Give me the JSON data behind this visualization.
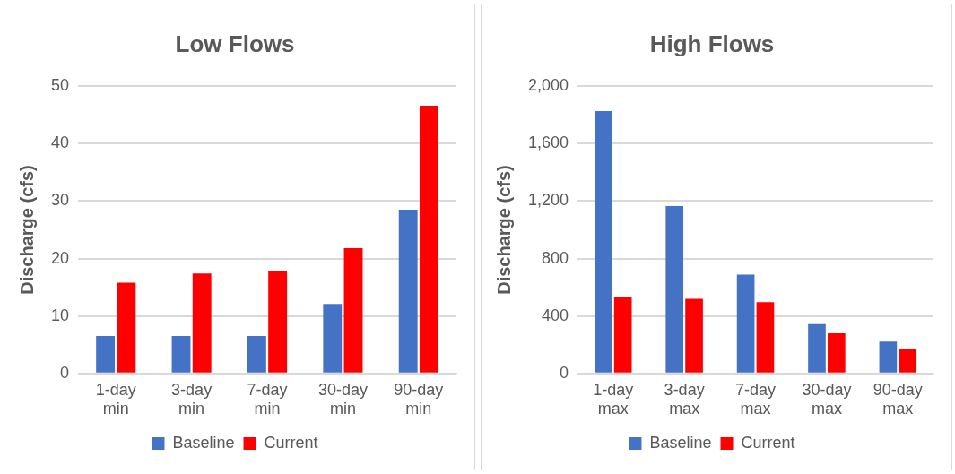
{
  "chart_data": [
    {
      "type": "bar",
      "title": "Low Flows",
      "ylabel": "Discharge (cfs)",
      "categories": [
        "1-day min",
        "3-day min",
        "7-day min",
        "30-day min",
        "90-day min"
      ],
      "series": [
        {
          "name": "Baseline",
          "color": "#4472c4",
          "values": [
            6.5,
            6.5,
            6.5,
            12.1,
            28.5
          ]
        },
        {
          "name": "Current",
          "color": "#ff0000",
          "values": [
            15.8,
            17.4,
            17.9,
            21.8,
            46.6
          ]
        }
      ],
      "ylim": [
        0,
        50
      ],
      "yticks": [
        0,
        10,
        20,
        30,
        40,
        50
      ],
      "grid": "y",
      "legend": "bottom"
    },
    {
      "type": "bar",
      "title": "High Flows",
      "ylabel": "Discharge (cfs)",
      "categories": [
        "1-day max",
        "3-day max",
        "7-day max",
        "30-day max",
        "90-day max"
      ],
      "series": [
        {
          "name": "Baseline",
          "color": "#4472c4",
          "values": [
            1827,
            1165,
            688,
            344,
            221
          ]
        },
        {
          "name": "Current",
          "color": "#ff0000",
          "values": [
            534,
            520,
            496,
            279,
            173
          ]
        }
      ],
      "ylim": [
        0,
        2000
      ],
      "yticks": [
        0,
        {
          "value": 400,
          "label": "400"
        },
        {
          "value": 800,
          "label": "800"
        },
        {
          "value": 1200,
          "label": "1,200"
        },
        {
          "value": 1600,
          "label": "1,600"
        },
        {
          "value": 2000,
          "label": "2,000"
        }
      ],
      "grid": "y",
      "legend": "bottom"
    }
  ]
}
